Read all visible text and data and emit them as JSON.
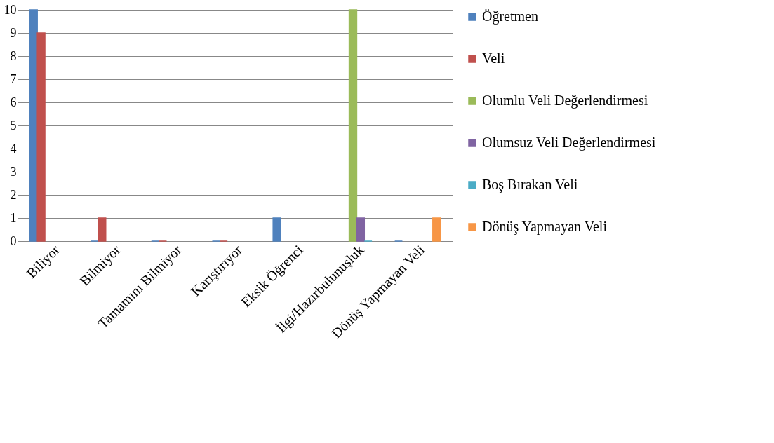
{
  "chart_data": {
    "type": "bar",
    "categories": [
      "Biliyor",
      "Bilmiyor",
      "Tamamını Bilmiyor",
      "Karıştırıyor",
      "Eksik Öğrenci",
      "İlgi/Hazırbulunuşluk",
      "Dönüş Yapmayan Veli"
    ],
    "series": [
      {
        "name": "Öğretmen",
        "color": "#4f81bd",
        "values": [
          10,
          0,
          0,
          0,
          1,
          null,
          0
        ]
      },
      {
        "name": "Veli",
        "color": "#c0504d",
        "values": [
          9,
          1,
          0,
          0,
          null,
          null,
          null
        ]
      },
      {
        "name": "Olumlu Veli Değerlendirmesi",
        "color": "#9bbb59",
        "values": [
          null,
          null,
          null,
          null,
          null,
          10,
          null
        ]
      },
      {
        "name": "Olumsuz Veli Değerlendirmesi",
        "color": "#8064a2",
        "values": [
          null,
          null,
          null,
          null,
          null,
          1,
          null
        ]
      },
      {
        "name": "Boş Bırakan Veli",
        "color": "#4bacc6",
        "values": [
          null,
          null,
          null,
          null,
          null,
          0,
          null
        ]
      },
      {
        "name": "Dönüş Yapmayan Veli",
        "color": "#f79646",
        "values": [
          null,
          null,
          null,
          null,
          null,
          null,
          1
        ]
      }
    ],
    "ylim": [
      0,
      10
    ],
    "yticks": [
      0,
      1,
      2,
      3,
      4,
      5,
      6,
      7,
      8,
      9,
      10
    ],
    "grid": "y",
    "legend": "right"
  }
}
